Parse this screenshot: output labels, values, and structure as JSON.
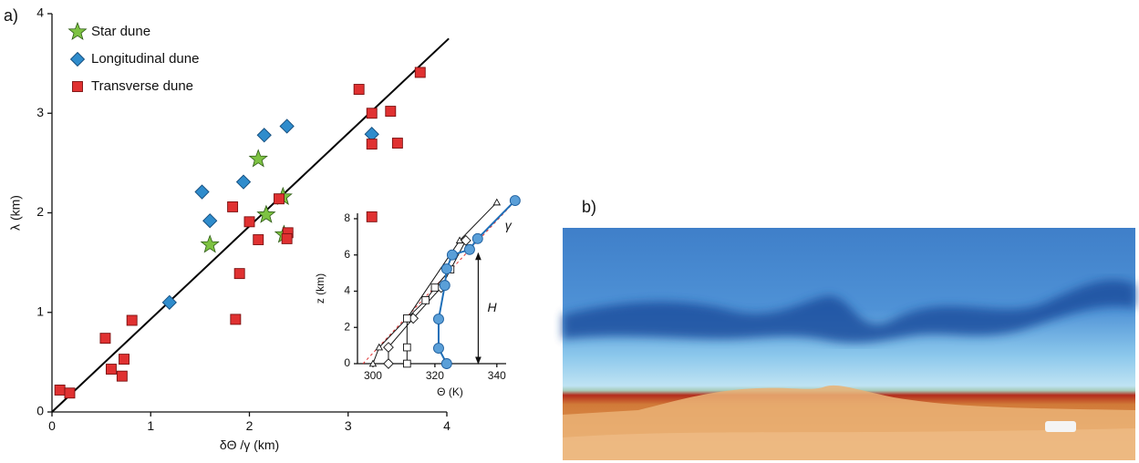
{
  "chart_data": [
    {
      "type": "scatter",
      "label": "a)",
      "xlabel": "δΘ /γ (km)",
      "ylabel": "λ (km)",
      "xlim": [
        0,
        4
      ],
      "ylim": [
        0,
        4
      ],
      "xticks": [
        0,
        1,
        2,
        3,
        4
      ],
      "yticks": [
        0,
        1,
        2,
        3,
        4
      ],
      "legend": "upper left",
      "series": [
        {
          "name": "Star dune",
          "color": "#7dc242",
          "marker": "star",
          "x": [
            1.6,
            2.09,
            2.17,
            2.34,
            2.35
          ],
          "values": [
            1.68,
            2.54,
            1.98,
            2.16,
            1.78
          ]
        },
        {
          "name": "Longitudinal dune",
          "color": "#2f8ccc",
          "marker": "diamond",
          "x": [
            1.19,
            1.52,
            1.6,
            1.94,
            2.15,
            2.38,
            3.24
          ],
          "values": [
            1.1,
            2.21,
            1.92,
            2.31,
            2.78,
            2.87,
            2.79
          ]
        },
        {
          "name": "Transverse dune",
          "color": "#e03131",
          "marker": "square",
          "x": [
            0.08,
            0.18,
            0.54,
            0.6,
            0.73,
            0.71,
            0.81,
            1.83,
            1.86,
            1.9,
            2.0,
            2.09,
            2.3,
            2.39,
            2.38,
            3.11,
            3.24,
            3.24,
            3.24,
            3.43,
            3.5,
            3.73
          ],
          "values": [
            0.22,
            0.19,
            0.74,
            0.43,
            0.53,
            0.36,
            0.92,
            2.06,
            0.93,
            1.39,
            1.91,
            1.73,
            2.14,
            1.8,
            1.74,
            3.24,
            3.0,
            2.69,
            1.96,
            3.02,
            2.7,
            3.41
          ]
        }
      ],
      "fit_line": {
        "color": "#000000",
        "x": [
          0,
          4.02
        ],
        "values": [
          0,
          3.75
        ]
      }
    },
    {
      "type": "line",
      "xlabel": "Θ (K)",
      "ylabel": "z (km)",
      "xlim": [
        295,
        343
      ],
      "ylim": [
        0,
        8.3
      ],
      "xticks": [
        300,
        320,
        340
      ],
      "yticks": [
        0,
        2,
        4,
        6,
        8
      ],
      "series": [
        {
          "name": "γ",
          "color": "#e03131",
          "marker": "none",
          "dashed": true,
          "x": [
            296.8,
            344.4
          ],
          "values": [
            0,
            8.7
          ]
        },
        {
          "color": "#111111",
          "marker": "triangle",
          "x": [
            300,
            302,
            311,
            328,
            340
          ],
          "values": [
            0,
            0.9,
            2.5,
            6.8,
            8.9
          ]
        },
        {
          "color": "#111111",
          "marker": "diamond",
          "x": [
            305,
            305,
            313,
            322,
            330
          ],
          "values": [
            0,
            0.9,
            2.5,
            4.2,
            6.8
          ]
        },
        {
          "color": "#111111",
          "marker": "square",
          "x": [
            311,
            311,
            311,
            317,
            320,
            325
          ],
          "values": [
            0,
            0.9,
            2.5,
            3.5,
            4.2,
            5.2
          ]
        },
        {
          "color": "#1f6fb8",
          "marker": "circle",
          "x": [
            323.8,
            321.2,
            321.2,
            323.2,
            323.8,
            325.6,
            331.2,
            333.8,
            345.9
          ],
          "values": [
            0,
            0.85,
            2.46,
            4.32,
            5.23,
            6.0,
            6.3,
            6.9,
            9.0
          ]
        }
      ],
      "annotations": [
        {
          "text": "H",
          "x": 334,
          "z": [
            0,
            6.1
          ]
        }
      ]
    }
  ],
  "photo": {
    "label": "b)"
  }
}
